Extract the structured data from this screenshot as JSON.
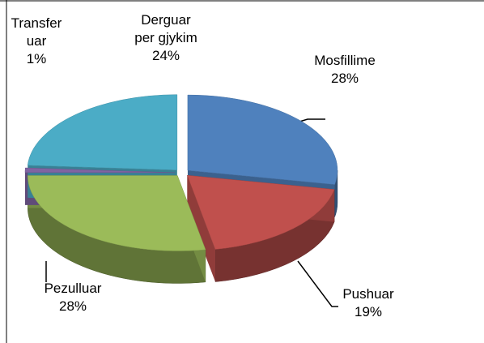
{
  "chart_data": {
    "type": "pie",
    "categories": [
      "Mosfillime",
      "Pushuar",
      "Pezulluar",
      "Transferuar",
      "Derguar per gjykim"
    ],
    "values": [
      28,
      19,
      28,
      1,
      24
    ],
    "value_labels": [
      "28%",
      "19%",
      "28%",
      "1%",
      "24%"
    ],
    "colors": [
      "#4f81bd",
      "#c0504d",
      "#9bbb59",
      "#8064a2",
      "#4bacc6"
    ]
  }
}
